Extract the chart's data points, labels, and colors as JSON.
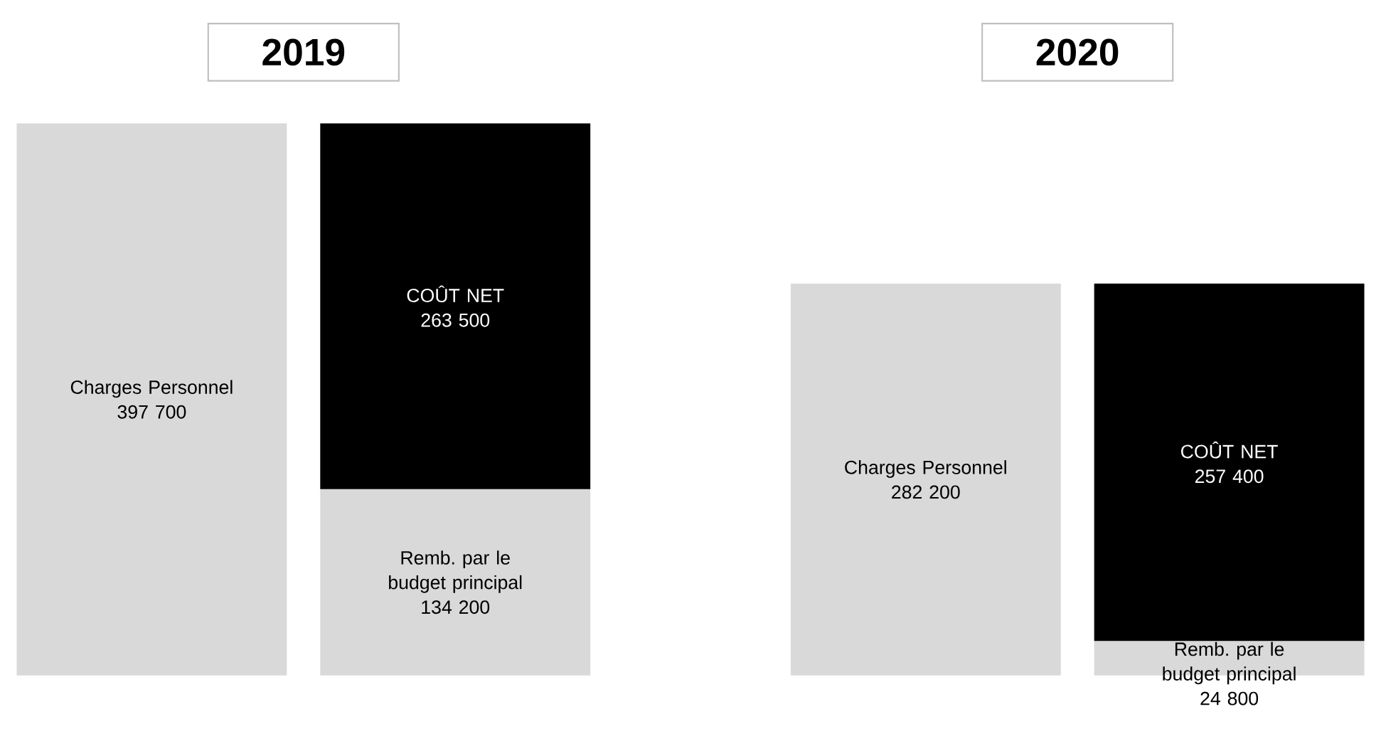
{
  "chart_data": [
    {
      "type": "bar",
      "title": "2019",
      "categories": [
        null,
        null
      ],
      "stacked": true,
      "tick_labels": false,
      "series": [
        {
          "name": "Charges Personnel",
          "color": "#d9d9d9",
          "values": [
            397700,
            null
          ],
          "value_labels": [
            "397 700",
            null
          ]
        },
        {
          "name": "Remb. par le budget principal",
          "color": "#d9d9d9",
          "values": [
            null,
            134200
          ],
          "value_labels": [
            null,
            "134 200"
          ]
        },
        {
          "name": "COÛT NET",
          "color": "#000000",
          "values": [
            null,
            263500
          ],
          "value_labels": [
            null,
            "263 500"
          ]
        }
      ]
    },
    {
      "type": "bar",
      "title": "2020",
      "categories": [
        null,
        null
      ],
      "stacked": true,
      "tick_labels": false,
      "series": [
        {
          "name": "Charges Personnel",
          "color": "#d9d9d9",
          "values": [
            282200,
            null
          ],
          "value_labels": [
            "282 200",
            null
          ]
        },
        {
          "name": "Remb. par le budget principal",
          "color": "#d9d9d9",
          "values": [
            null,
            24800
          ],
          "value_labels": [
            null,
            "24 800"
          ]
        },
        {
          "name": "COÛT NET",
          "color": "#000000",
          "values": [
            null,
            257400
          ],
          "value_labels": [
            null,
            "257 400"
          ]
        }
      ]
    }
  ]
}
